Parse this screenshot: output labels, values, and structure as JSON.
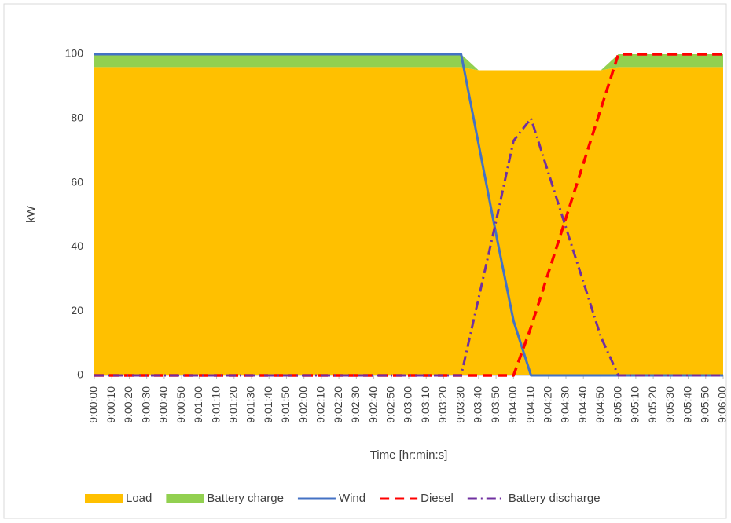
{
  "chart_data": {
    "type": "area-line",
    "x_label": "Time [hr:min:s]",
    "y_label": "kW",
    "categories": [
      "9:00:00",
      "9:00:10",
      "9:00:20",
      "9:00:30",
      "9:00:40",
      "9:00:50",
      "9:01:00",
      "9:01:10",
      "9:01:20",
      "9:01:30",
      "9:01:40",
      "9:01:50",
      "9:02:00",
      "9:02:10",
      "9:02:20",
      "9:02:30",
      "9:02:40",
      "9:02:50",
      "9:03:00",
      "9:03:10",
      "9:03:20",
      "9:03:30",
      "9:03:40",
      "9:03:50",
      "9:04:00",
      "9:04:10",
      "9:04:20",
      "9:04:30",
      "9:04:40",
      "9:04:50",
      "9:05:00",
      "9:05:10",
      "9:05:20",
      "9:05:30",
      "9:05:40",
      "9:05:50",
      "9:06:00"
    ],
    "ylim": [
      0,
      100
    ],
    "yticks": [
      0,
      20,
      40,
      60,
      80,
      100
    ],
    "series": [
      {
        "name": "Load",
        "kind": "area",
        "color": "#ffc000",
        "values": [
          96,
          96,
          96,
          96,
          96,
          96,
          96,
          96,
          96,
          96,
          96,
          96,
          96,
          96,
          96,
          96,
          96,
          96,
          96,
          96,
          96,
          96,
          95,
          95,
          95,
          95,
          95,
          95,
          95,
          95,
          96,
          96,
          96,
          96,
          96,
          96,
          96
        ]
      },
      {
        "name": "Battery charge",
        "kind": "area",
        "color": "#92d050",
        "values": [
          4,
          4,
          4,
          4,
          4,
          4,
          4,
          4,
          4,
          4,
          4,
          4,
          4,
          4,
          4,
          4,
          4,
          4,
          4,
          4,
          4,
          4,
          0,
          0,
          0,
          0,
          0,
          0,
          0,
          0,
          4,
          4,
          4,
          4,
          4,
          4,
          4
        ]
      },
      {
        "name": "Wind",
        "kind": "line",
        "dash": "solid",
        "color": "#4472c4",
        "values": [
          100,
          100,
          100,
          100,
          100,
          100,
          100,
          100,
          100,
          100,
          100,
          100,
          100,
          100,
          100,
          100,
          100,
          100,
          100,
          100,
          100,
          100,
          72,
          44,
          17,
          0,
          0,
          0,
          0,
          0,
          0,
          0,
          0,
          0,
          0,
          0,
          0
        ]
      },
      {
        "name": "Diesel",
        "kind": "line",
        "dash": "dash",
        "color": "#ff0000",
        "values": [
          0,
          0,
          0,
          0,
          0,
          0,
          0,
          0,
          0,
          0,
          0,
          0,
          0,
          0,
          0,
          0,
          0,
          0,
          0,
          0,
          0,
          0,
          0,
          0,
          0,
          15,
          32,
          49,
          66,
          83,
          100,
          100,
          100,
          100,
          100,
          100,
          100
        ]
      },
      {
        "name": "Battery discharge",
        "kind": "line",
        "dash": "dashdot",
        "color": "#7030a0",
        "values": [
          0,
          0,
          0,
          0,
          0,
          0,
          0,
          0,
          0,
          0,
          0,
          0,
          0,
          0,
          0,
          0,
          0,
          0,
          0,
          0,
          0,
          0,
          24,
          48,
          73,
          80,
          63,
          46,
          29,
          12,
          0,
          0,
          0,
          0,
          0,
          0,
          0
        ]
      }
    ]
  }
}
